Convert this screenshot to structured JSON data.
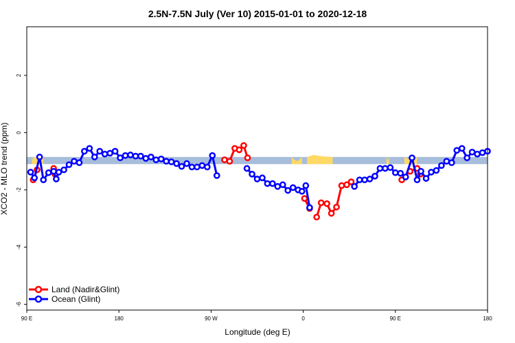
{
  "chart_data": {
    "type": "line",
    "title": "2.5N-7.5N July (Ver 10)   2015-01-01 to 2020-12-18",
    "xlabel": "Longitude (deg E)",
    "ylabel": "XCO2 - MLO trend (ppm)",
    "xlim": [
      90,
      450
    ],
    "ylim": [
      -6.2,
      3.7
    ],
    "x_ticks": [
      {
        "value": 90,
        "label": "90 E"
      },
      {
        "value": 162,
        "label": "180"
      },
      {
        "value": 234,
        "label": "90 W"
      },
      {
        "value": 306,
        "label": "0"
      },
      {
        "value": 378,
        "label": "90 E"
      },
      {
        "value": 450,
        "label": "180"
      }
    ],
    "y_ticks": [
      {
        "value": 2,
        "label": "2"
      },
      {
        "value": 0,
        "label": "0"
      },
      {
        "value": -2,
        "label": "-2"
      },
      {
        "value": -4,
        "label": "-4"
      },
      {
        "value": -6,
        "label": "-6"
      }
    ],
    "grid": false,
    "legend_position": "bottom-left",
    "background_band": {
      "y_min": -1.1,
      "y_max": -0.85,
      "color": "#a7bddb"
    },
    "land_patches": {
      "color": "#ffd966",
      "segments": [
        {
          "x_start": 94,
          "x_end": 97,
          "y_top": -0.95
        },
        {
          "x_start": 95,
          "x_end": 103,
          "y_top": -0.85
        },
        {
          "x_start": 309,
          "x_end": 329,
          "y_top": -0.78
        },
        {
          "x_start": 297,
          "x_end": 305,
          "y_top": -0.95
        },
        {
          "x_start": 371,
          "x_end": 373,
          "y_top": -0.92
        },
        {
          "x_start": 385,
          "x_end": 395,
          "y_top": -0.9
        }
      ]
    },
    "series": [
      {
        "name": "Land (Nadir&Glint)",
        "color": "#ff0000",
        "segments": [
          [
            [
              95,
              -1.65
            ],
            [
              98,
              -1.3
            ]
          ],
          [
            [
              111,
              -1.25
            ],
            [
              112,
              -1.45
            ]
          ],
          [
            [
              244.5,
              -0.95
            ],
            [
              248.5,
              -1.0
            ],
            [
              252.5,
              -0.55
            ],
            [
              256,
              -0.6
            ],
            [
              259.5,
              -0.45
            ],
            [
              262.5,
              -0.88
            ]
          ],
          [
            [
              307,
              -2.3
            ],
            [
              311,
              -2.65
            ]
          ],
          [
            [
              316.5,
              -2.95
            ],
            [
              320,
              -2.45
            ],
            [
              324.5,
              -2.48
            ],
            [
              328,
              -2.82
            ],
            [
              332,
              -2.6
            ],
            [
              336,
              -1.85
            ],
            [
              340,
              -1.82
            ],
            [
              343.5,
              -1.72
            ]
          ],
          [
            [
              383,
              -1.65
            ],
            [
              389.5,
              -1.35
            ],
            [
              395,
              -1.25
            ],
            [
              397.5,
              -1.45
            ]
          ]
        ]
      },
      {
        "name": "Ocean (Glint)",
        "color": "#0000ff",
        "segments": [
          [
            [
              93,
              -1.38
            ],
            [
              96,
              -1.58
            ],
            [
              100,
              -0.85
            ],
            [
              103,
              -1.65
            ],
            [
              107,
              -1.4
            ],
            [
              111,
              -1.35
            ],
            [
              113,
              -1.62
            ],
            [
              115,
              -1.38
            ],
            [
              119,
              -1.3
            ],
            [
              123,
              -1.12
            ],
            [
              127,
              -1.0
            ],
            [
              131,
              -1.05
            ],
            [
              135,
              -0.65
            ],
            [
              139,
              -0.55
            ],
            [
              143,
              -0.85
            ],
            [
              147,
              -0.65
            ],
            [
              151,
              -0.75
            ],
            [
              155,
              -0.72
            ],
            [
              159,
              -0.65
            ],
            [
              163,
              -0.88
            ],
            [
              167,
              -0.8
            ],
            [
              171,
              -0.78
            ],
            [
              175,
              -0.82
            ],
            [
              179,
              -0.82
            ],
            [
              183,
              -0.9
            ],
            [
              187,
              -0.85
            ],
            [
              191,
              -0.95
            ],
            [
              195,
              -0.92
            ],
            [
              199,
              -1.0
            ],
            [
              203,
              -1.02
            ],
            [
              207,
              -1.08
            ],
            [
              211,
              -1.18
            ],
            [
              215,
              -1.08
            ],
            [
              219,
              -1.2
            ],
            [
              223,
              -1.2
            ],
            [
              227,
              -1.15
            ],
            [
              231,
              -1.2
            ],
            [
              235,
              -0.8
            ],
            [
              238.5,
              -1.5
            ]
          ],
          [
            [
              262,
              -1.25
            ],
            [
              266,
              -1.45
            ],
            [
              270,
              -1.62
            ],
            [
              274,
              -1.58
            ],
            [
              278,
              -1.78
            ],
            [
              282,
              -1.78
            ],
            [
              286,
              -1.88
            ],
            [
              290,
              -1.82
            ],
            [
              294,
              -2.02
            ],
            [
              298,
              -1.92
            ],
            [
              302,
              -2.0
            ],
            [
              305,
              -2.05
            ],
            [
              308,
              -1.85
            ],
            [
              311,
              -2.62
            ]
          ],
          [
            [
              346,
              -1.88
            ],
            [
              350,
              -1.65
            ],
            [
              354,
              -1.65
            ],
            [
              358,
              -1.62
            ],
            [
              362,
              -1.52
            ],
            [
              366,
              -1.25
            ],
            [
              370,
              -1.25
            ],
            [
              374,
              -1.22
            ],
            [
              378,
              -1.4
            ],
            [
              382,
              -1.42
            ],
            [
              386,
              -1.55
            ],
            [
              391,
              -0.88
            ],
            [
              395,
              -1.65
            ],
            [
              398,
              -1.35
            ],
            [
              402,
              -1.6
            ],
            [
              406,
              -1.38
            ],
            [
              410,
              -1.32
            ],
            [
              414,
              -1.15
            ],
            [
              418,
              -1.0
            ],
            [
              422,
              -1.05
            ],
            [
              426,
              -0.62
            ],
            [
              430,
              -0.55
            ],
            [
              434,
              -0.88
            ],
            [
              438,
              -0.68
            ],
            [
              442,
              -0.75
            ],
            [
              446,
              -0.7
            ],
            [
              450,
              -0.65
            ]
          ]
        ]
      }
    ]
  }
}
